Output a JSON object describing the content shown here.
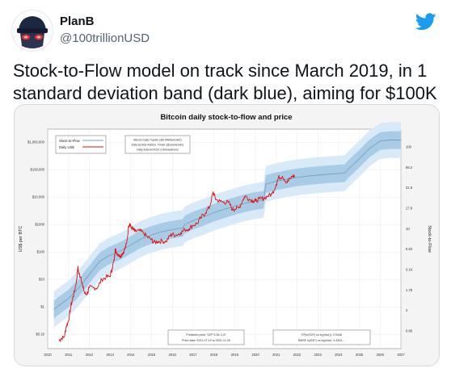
{
  "tweet": {
    "author_name": "PlanB",
    "author_handle": "@100trillionUSD",
    "text": "Stock-to-Flow model on track since March 2019, in 1 standard deviation band (dark blue), aiming for $100K"
  },
  "icons": {
    "logo": "twitter-bird-icon",
    "avatar": "avatar-icon"
  },
  "colors": {
    "twitter_blue": "#1d9bf0",
    "price_line": "#e01010",
    "model_line": "#7a9fb8",
    "band_dark": "#a9cce6",
    "band_light": "#d8eaf7"
  },
  "chart_data": {
    "type": "line",
    "title": "Bitcoin daily stock-to-flow and price",
    "ylabel": "US$ per BTC",
    "y2label": "Stock-to-Flow",
    "x_ticks": [
      "2010",
      "2011",
      "2012",
      "2013",
      "2014",
      "2015",
      "2016",
      "2017",
      "2018",
      "2019",
      "2020",
      "2021",
      "2022",
      "2023",
      "2024",
      "2025",
      "2026",
      "2027"
    ],
    "y_ticks": [
      "$0.10",
      "$1",
      "$10",
      "$100",
      "$1000",
      "$10,000",
      "$100,000",
      "$1,000,000"
    ],
    "y2_ticks": [
      "0.86",
      "3",
      "1.78",
      "3.1K",
      "5.62",
      "10",
      "17.8",
      "31.6",
      "56.2",
      "100"
    ],
    "legend": [
      "Stock-to-Flow",
      "Daily US$"
    ],
    "credits": [
      "Bitcoin Daily Tracker (@100trillionUSD)",
      "Data by Bob-Ashton, Finder (@answers4x)",
      "Daily indexed from Coinbasebrexs"
    ],
    "stats_left": [
      "Predicted price: S2F^3.3e-3.47",
      "Price data: 2021-07-19 to 2021-11-30"
    ],
    "stats_right": [
      "R²(ln(S2F) vs ln(price)): 0.9448",
      "RMSE ln(S2F) vs ln(price): 0.4303 ..."
    ],
    "ylim": [
      0.03,
      3000000
    ],
    "xlim": [
      2010,
      2027
    ],
    "model": {
      "name": "Stock-to-Flow",
      "x": [
        2010.3,
        2010.6,
        2011.0,
        2011.5,
        2012.0,
        2012.5,
        2012.9,
        2013.5,
        2014.0,
        2014.5,
        2015.0,
        2015.5,
        2016.0,
        2016.5,
        2016.6,
        2017.0,
        2017.5,
        2018.0,
        2018.5,
        2019.0,
        2019.5,
        2020.0,
        2020.4,
        2020.5,
        2021.0,
        2021.5,
        2022.0,
        2022.5,
        2023.0,
        2023.5,
        2024.0,
        2024.3,
        2024.5,
        2025.0,
        2025.5,
        2026.0,
        2026.5,
        2027.0
      ],
      "y": [
        0.8,
        1.2,
        2.0,
        5.0,
        15,
        45,
        70,
        110,
        180,
        300,
        420,
        550,
        650,
        750,
        1000,
        1400,
        1900,
        2700,
        3600,
        4700,
        6000,
        7200,
        8000,
        30000,
        38000,
        45000,
        52000,
        58000,
        63000,
        68000,
        72000,
        75000,
        110000,
        250000,
        600000,
        1100000,
        1200000,
        1200000
      ]
    },
    "price": {
      "name": "Daily US$",
      "x": [
        2010.55,
        2010.65,
        2010.8,
        2010.9,
        2011.0,
        2011.1,
        2011.2,
        2011.3,
        2011.4,
        2011.45,
        2011.5,
        2011.6,
        2011.7,
        2011.8,
        2011.9,
        2012.0,
        2012.2,
        2012.4,
        2012.6,
        2012.8,
        2013.0,
        2013.1,
        2013.2,
        2013.25,
        2013.3,
        2013.4,
        2013.5,
        2013.6,
        2013.7,
        2013.8,
        2013.9,
        2013.95,
        2014.0,
        2014.1,
        2014.2,
        2014.4,
        2014.6,
        2014.8,
        2015.0,
        2015.1,
        2015.3,
        2015.5,
        2015.7,
        2015.9,
        2016.0,
        2016.2,
        2016.4,
        2016.6,
        2016.8,
        2017.0,
        2017.2,
        2017.4,
        2017.6,
        2017.8,
        2017.95,
        2018.0,
        2018.1,
        2018.3,
        2018.5,
        2018.7,
        2018.9,
        2019.0,
        2019.2,
        2019.4,
        2019.5,
        2019.7,
        2019.9,
        2020.0,
        2020.2,
        2020.4,
        2020.6,
        2020.8,
        2021.0,
        2021.1,
        2021.3,
        2021.5,
        2021.6,
        2021.8,
        2021.9
      ],
      "y": [
        0.06,
        0.07,
        0.08,
        0.2,
        0.3,
        0.9,
        2,
        4,
        10,
        28,
        16,
        12,
        5,
        3,
        3,
        5,
        5,
        5,
        10,
        12,
        13,
        25,
        50,
        130,
        100,
        80,
        70,
        90,
        120,
        200,
        900,
        1100,
        800,
        700,
        550,
        600,
        500,
        350,
        280,
        220,
        240,
        250,
        240,
        400,
        430,
        420,
        500,
        650,
        700,
        950,
        1100,
        1900,
        2700,
        4500,
        14000,
        13000,
        8000,
        7000,
        6500,
        6500,
        3500,
        3700,
        4000,
        8000,
        11000,
        8500,
        7300,
        7200,
        8500,
        9000,
        11000,
        13000,
        29000,
        50000,
        58000,
        35000,
        40000,
        60000,
        57000
      ]
    }
  }
}
